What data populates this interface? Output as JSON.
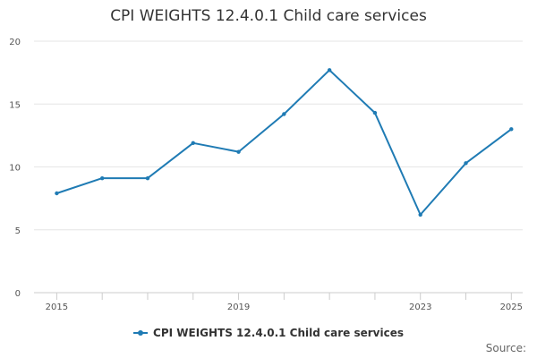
{
  "title": "CPI WEIGHTS 12.4.0.1 Child care services",
  "source_label": "Source:",
  "colors": {
    "series": "#1f7bb4",
    "grid": "#e6e6e6",
    "axis": "#cccccc"
  },
  "chart_data": {
    "type": "line",
    "title": "CPI WEIGHTS 12.4.0.1 Child care services",
    "xlabel": "",
    "ylabel": "",
    "x": [
      2015,
      2016,
      2017,
      2018,
      2019,
      2020,
      2021,
      2022,
      2023,
      2024,
      2025
    ],
    "x_tick_labels": [
      "2015",
      "2019",
      "2023",
      "2025"
    ],
    "x_tick_values": [
      2015,
      2019,
      2023,
      2025
    ],
    "ylim": [
      0,
      20
    ],
    "y_ticks": [
      0,
      5,
      10,
      15,
      20
    ],
    "grid": true,
    "legend_position": "bottom",
    "series": [
      {
        "name": "CPI WEIGHTS 12.4.0.1 Child care services",
        "values": [
          7.9,
          9.1,
          9.1,
          11.9,
          11.2,
          14.2,
          17.7,
          14.3,
          6.2,
          10.3,
          13.0
        ]
      }
    ]
  }
}
